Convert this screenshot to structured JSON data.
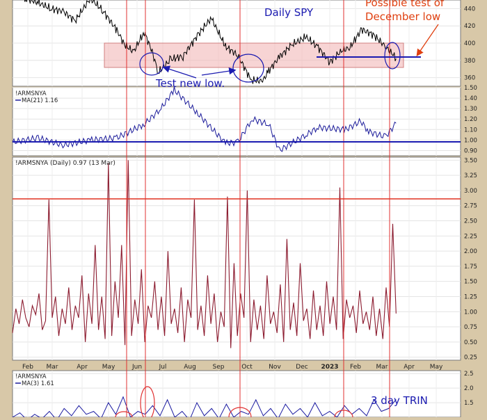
{
  "chart_data": [
    {
      "type": "line",
      "title": "Daily SPY",
      "series": [
        {
          "x": [
            "2022-01-03",
            "2022-01-18",
            "2022-02-01",
            "2022-02-15",
            "2022-03-01",
            "2022-03-15",
            "2022-04-01",
            "2022-04-15",
            "2022-05-01",
            "2022-05-10",
            "2022-05-20",
            "2022-06-01",
            "2022-06-10",
            "2022-06-17",
            "2022-07-01",
            "2022-07-15",
            "2022-08-01",
            "2022-08-16",
            "2022-09-01",
            "2022-09-15",
            "2022-09-30",
            "2022-10-13",
            "2022-10-20",
            "2022-11-01",
            "2022-11-15",
            "2022-12-01",
            "2022-12-15",
            "2022-12-28",
            "2023-01-10",
            "2023-01-20",
            "2023-02-02",
            "2023-02-15",
            "2023-03-01",
            "2023-03-10",
            "2023-03-13"
          ],
          "values": [
            468,
            452,
            447,
            440,
            437,
            426,
            452,
            438,
            415,
            398,
            390,
            413,
            390,
            366,
            381,
            385,
            410,
            429,
            396,
            386,
            357,
            356,
            368,
            384,
            398,
            407,
            395,
            378,
            391,
            395,
            416,
            410,
            396,
            386,
            382
          ]
        }
      ],
      "ylim": [
        350,
        450
      ],
      "y_ticks": [
        "360",
        "380",
        "400",
        "420",
        "440"
      ],
      "annotations": {
        "test_new_low": "Test new low.",
        "possible_test": "Possible test of December low"
      }
    },
    {
      "type": "line",
      "legend": [
        "!ARMSNYA",
        "MA(21) 1.16"
      ],
      "series": [
        {
          "name": "MA(21)",
          "x": [
            "2022-01-03",
            "2022-02-01",
            "2022-03-01",
            "2022-04-01",
            "2022-05-01",
            "2022-06-01",
            "2022-06-20",
            "2022-07-05",
            "2022-08-01",
            "2022-09-01",
            "2022-09-15",
            "2022-10-01",
            "2022-10-20",
            "2022-11-01",
            "2022-12-01",
            "2022-12-15",
            "2023-01-15",
            "2023-02-01",
            "2023-02-10",
            "2023-03-01",
            "2023-03-13"
          ],
          "values": [
            0.98,
            1.02,
            0.95,
            1.0,
            1.02,
            1.15,
            1.3,
            1.48,
            1.25,
            0.97,
            0.98,
            1.2,
            1.15,
            0.9,
            1.05,
            1.12,
            1.1,
            1.18,
            1.08,
            1.03,
            1.16
          ]
        }
      ],
      "reference_line": 1.0,
      "ylim": [
        0.85,
        1.5
      ],
      "y_ticks": [
        "0.90",
        "1.00",
        "1.10",
        "1.20",
        "1.30",
        "1.40",
        "1.50"
      ]
    },
    {
      "type": "line",
      "title": "!ARMSNYA (Daily) 0.97 (13 Mar)",
      "series": [
        {
          "name": "!ARMSNYA (Daily)",
          "values": [
            0.65,
            1.05,
            0.8,
            1.2,
            0.9,
            0.75,
            1.1,
            0.95,
            1.3,
            0.7,
            0.85,
            2.85,
            0.9,
            1.25,
            0.6,
            1.05,
            0.8,
            1.4,
            0.7,
            1.1,
            0.9,
            1.6,
            0.5,
            1.3,
            0.8,
            2.1,
            0.7,
            1.25,
            0.55,
            3.45,
            0.6,
            1.5,
            0.9,
            2.1,
            0.45,
            3.5,
            0.6,
            1.2,
            0.8,
            1.7,
            0.5,
            1.1,
            0.9,
            1.5,
            0.7,
            1.25,
            0.6,
            2.0,
            0.8,
            1.05,
            0.65,
            1.4,
            0.5,
            1.2,
            0.9,
            2.85,
            0.7,
            1.1,
            0.6,
            1.6,
            0.8,
            1.3,
            0.5,
            1.0,
            0.75,
            2.9,
            0.4,
            1.8,
            0.6,
            1.3,
            0.9,
            3.0,
            0.5,
            1.2,
            0.7,
            1.1,
            0.55,
            1.6,
            0.8,
            1.0,
            0.65,
            1.45,
            0.5,
            2.2,
            0.7,
            1.15,
            0.6,
            1.8,
            0.85,
            1.05,
            0.55,
            1.35,
            0.7,
            1.1,
            0.6,
            1.5,
            0.8,
            1.25,
            0.7,
            3.05,
            0.55,
            1.2,
            0.9,
            1.1,
            0.65,
            1.35,
            0.8,
            1.0,
            0.7,
            1.25,
            0.6,
            1.05,
            0.55,
            1.4,
            0.75,
            2.45,
            0.97
          ],
          "color": "#8b1a2e"
        }
      ],
      "reference_line": 2.85,
      "ylim": [
        0.2,
        3.55
      ],
      "y_ticks": [
        "0.25",
        "0.50",
        "0.75",
        "1.00",
        "1.25",
        "1.50",
        "1.75",
        "2.00",
        "2.25",
        "2.50",
        "2.75",
        "3.00",
        "3.25",
        "3.50"
      ]
    },
    {
      "type": "line",
      "title": "3 day TRIN",
      "legend": [
        "!ARMSNYA",
        "MA(3) 1.61"
      ],
      "series": [
        {
          "name": "MA(3)",
          "values": [
            1.0,
            1.15,
            0.9,
            1.1,
            0.95,
            1.2,
            0.9,
            1.3,
            1.05,
            1.4,
            1.1,
            1.2,
            0.95,
            1.5,
            1.1,
            1.7,
            1.0,
            1.2,
            1.1,
            1.4,
            1.05,
            1.6,
            1.0,
            1.2,
            0.9,
            1.5,
            1.05,
            1.3,
            0.95,
            1.45,
            1.0,
            1.2,
            1.1,
            1.6,
            1.05,
            1.3,
            0.95,
            1.45,
            1.1,
            1.3,
            1.0,
            1.5,
            1.05,
            1.2,
            1.0,
            1.4,
            1.1,
            1.3,
            1.05,
            1.6,
            1.2,
            1.3,
            1.61
          ],
          "color": "#1a1aa0"
        }
      ],
      "ylim": [
        1.0,
        2.6
      ],
      "y_ticks": [
        "1.5",
        "2.0",
        "2.5"
      ]
    }
  ],
  "x_axis_labels": [
    "Feb",
    "Mar",
    "Apr",
    "May",
    "Jun",
    "Jul",
    "Aug",
    "Sep",
    "Oct",
    "Nov",
    "Dec",
    "2023",
    "Feb",
    "Mar",
    "Apr",
    "May"
  ],
  "colors": {
    "price": "#000000",
    "ma": "#1a1a9a",
    "arms": "#8b1a2e",
    "red_line": "#e03020",
    "annotation_blue": "#1a1ab0",
    "annotation_red": "#e04010"
  }
}
